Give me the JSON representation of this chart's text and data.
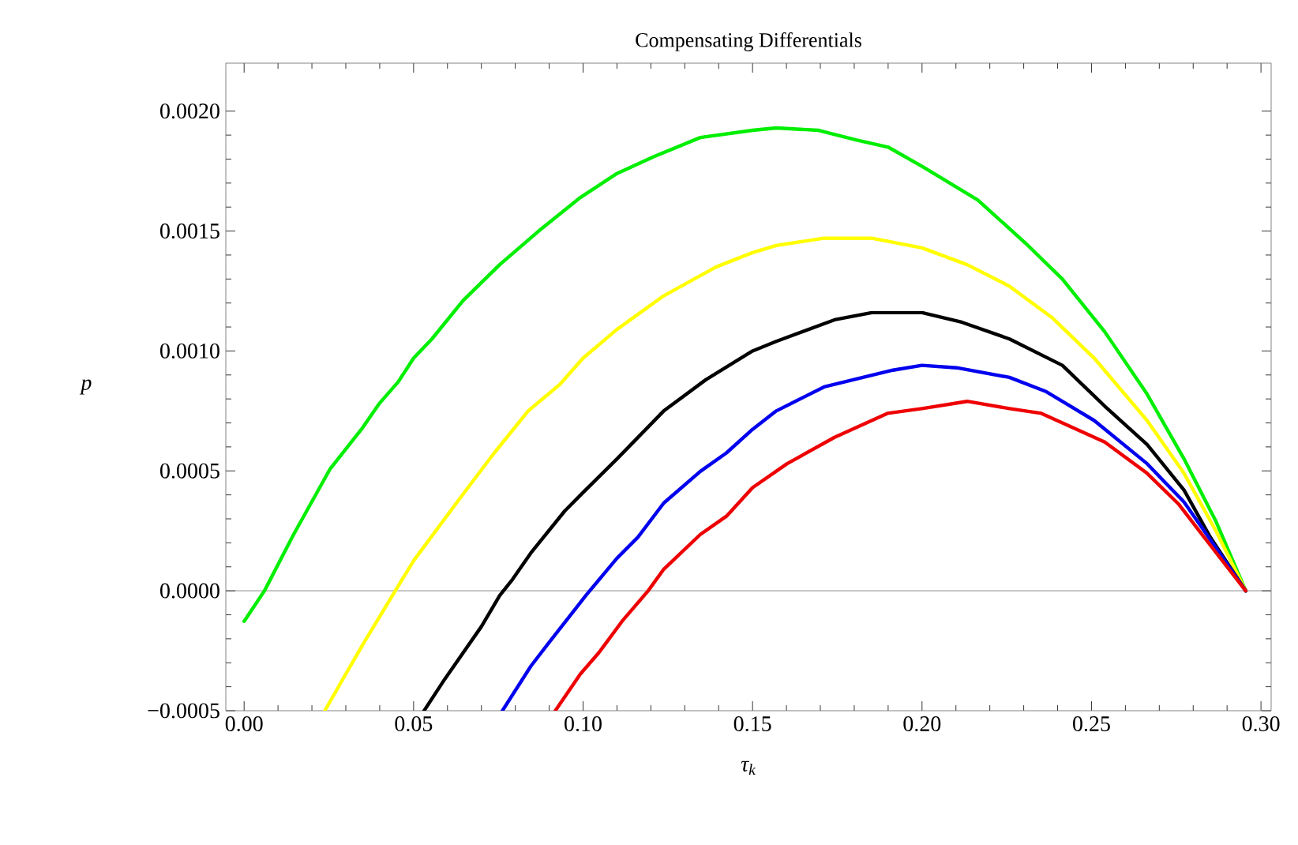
{
  "chart_data": {
    "type": "line",
    "title": "Compensating Differentials",
    "xlabel": "τ$_{k}$",
    "ylabel": "p",
    "xlim": [
      -0.0054,
      0.303
    ],
    "ylim": [
      -0.0005,
      0.0022
    ],
    "xticks": [
      {
        "value": 0,
        "label": "0.00"
      },
      {
        "value": 0.05,
        "label": "0.05"
      },
      {
        "value": 0.1,
        "label": "0.10"
      },
      {
        "value": 0.15,
        "label": "0.15"
      },
      {
        "value": 0.2,
        "label": "0.20"
      },
      {
        "value": 0.25,
        "label": "0.25"
      },
      {
        "value": 0.3,
        "label": "0.30"
      }
    ],
    "yticks": [
      {
        "value": -0.0005,
        "label": "−0.0005"
      },
      {
        "value": 0,
        "label": "0.0000"
      },
      {
        "value": 0.0005,
        "label": "0.0005"
      },
      {
        "value": 0.001,
        "label": "0.0010"
      },
      {
        "value": 0.0015,
        "label": "0.0015"
      },
      {
        "value": 0.002,
        "label": "0.0020"
      }
    ],
    "grid": false,
    "marker": "none",
    "line_style": "solid",
    "ref_lines": [
      {
        "axis": "y",
        "value": 0,
        "color": "#555555"
      }
    ],
    "series": [
      {
        "color": "#00ee00",
        "x": [
          0,
          0.006,
          0.0146,
          0.0254,
          0.0346,
          0.04,
          0.0454,
          0.05,
          0.0554,
          0.0646,
          0.0754,
          0.0869,
          0.0992,
          0.11,
          0.1208,
          0.1346,
          0.15,
          0.157,
          0.1695,
          0.1805,
          0.19,
          0.2,
          0.2164,
          0.2305,
          0.2414,
          0.2539,
          0.2664,
          0.2773,
          0.2867,
          0.2955
        ],
        "values": [
          -0.000127,
          0,
          0.000235,
          0.000509,
          0.000673,
          0.000783,
          0.00087,
          0.00097,
          0.00105,
          0.00121,
          0.00136,
          0.0015,
          0.00164,
          0.00174,
          0.00181,
          0.00189,
          0.00192,
          0.00193,
          0.00192,
          0.00188,
          0.00185,
          0.00177,
          0.00163,
          0.00145,
          0.0013,
          0.00108,
          0.00082,
          0.00055,
          0.00029,
          0
        ]
      },
      {
        "color": "#ffff00",
        "x": [
          0.0238,
          0.03,
          0.0354,
          0.0446,
          0.05,
          0.0569,
          0.0638,
          0.0738,
          0.0838,
          0.0931,
          0.1,
          0.11,
          0.1238,
          0.1392,
          0.15,
          0.157,
          0.1711,
          0.1852,
          0.2,
          0.2133,
          0.2258,
          0.2383,
          0.2508,
          0.2664,
          0.2773,
          0.2867,
          0.2955
        ],
        "values": [
          -0.0005,
          -0.000347,
          -0.000215,
          0,
          0.000125,
          0.000257,
          0.000388,
          0.000575,
          0.00075,
          0.00086,
          0.00097,
          0.00109,
          0.00123,
          0.00135,
          0.00141,
          0.00144,
          0.00147,
          0.00147,
          0.00143,
          0.00136,
          0.00127,
          0.00114,
          0.00097,
          0.00071,
          0.00049,
          0.00025,
          0
        ]
      },
      {
        "color": "#000000",
        "x": [
          0.0531,
          0.0592,
          0.07,
          0.0754,
          0.0792,
          0.0846,
          0.0946,
          0.1,
          0.11,
          0.1238,
          0.1362,
          0.15,
          0.157,
          0.1742,
          0.1852,
          0.2,
          0.2117,
          0.2258,
          0.2414,
          0.2539,
          0.2664,
          0.2773,
          0.2852,
          0.2955
        ],
        "values": [
          -0.0005,
          -0.000368,
          -0.000149,
          -2e-05,
          4.8e-05,
          0.000158,
          0.000333,
          0.00041,
          0.00055,
          0.00075,
          0.00088,
          0.001,
          0.00104,
          0.00113,
          0.00116,
          0.00116,
          0.00112,
          0.00105,
          0.00094,
          0.00077,
          0.00061,
          0.00042,
          0.00022,
          0
        ]
      },
      {
        "color": "#0000ee",
        "x": [
          0.0762,
          0.0846,
          0.09,
          0.1008,
          0.11,
          0.1162,
          0.1238,
          0.1346,
          0.1423,
          0.15,
          0.157,
          0.1711,
          0.1914,
          0.2,
          0.2102,
          0.2258,
          0.2367,
          0.2508,
          0.2664,
          0.2773,
          0.2867,
          0.2955
        ],
        "values": [
          -0.0005,
          -0.000314,
          -0.000215,
          -2e-05,
          0.000136,
          0.000224,
          0.000366,
          0.000498,
          0.000575,
          0.000673,
          0.00075,
          0.00085,
          0.00092,
          0.00094,
          0.00093,
          0.00089,
          0.00083,
          0.00071,
          0.00053,
          0.00037,
          0.00018,
          0
        ]
      },
      {
        "color": "#ee0000",
        "x": [
          0.0918,
          0.0992,
          0.1046,
          0.1115,
          0.1192,
          0.1238,
          0.1346,
          0.1423,
          0.15,
          0.1602,
          0.1742,
          0.1898,
          0.2,
          0.2133,
          0.2258,
          0.2352,
          0.2414,
          0.2539,
          0.2664,
          0.2758,
          0.2867,
          0.2955
        ],
        "values": [
          -0.0005,
          -0.000347,
          -0.000259,
          -0.000127,
          0,
          9e-05,
          0.000235,
          0.000311,
          0.00043,
          0.00053,
          0.00064,
          0.00074,
          0.00076,
          0.00079,
          0.00076,
          0.00074,
          0.0007,
          0.00062,
          0.00049,
          0.00036,
          0.00016,
          0
        ]
      }
    ]
  }
}
